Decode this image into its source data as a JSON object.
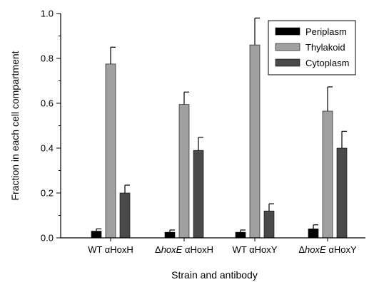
{
  "chart_data": {
    "type": "bar",
    "xlabel": "Strain and antibody",
    "ylabel": "Fraction in each cell compartment",
    "ylim": [
      0,
      1.0
    ],
    "yticks": [
      "0.0",
      "0.2",
      "0.4",
      "0.6",
      "0.8",
      "1.0"
    ],
    "grid": false,
    "legend_position": "top-right",
    "categories": [
      {
        "prefix": "WT ",
        "italic": "",
        "suffix": "",
        "greek": "α",
        "antibody": "HoxH"
      },
      {
        "prefix": "Δ",
        "italic": "hoxE",
        "suffix": " ",
        "greek": "α",
        "antibody": "HoxH"
      },
      {
        "prefix": "WT ",
        "italic": "",
        "suffix": "",
        "greek": "α",
        "antibody": "HoxY"
      },
      {
        "prefix": "Δ",
        "italic": "hoxE",
        "suffix": " ",
        "greek": "α",
        "antibody": "HoxY"
      }
    ],
    "series": [
      {
        "name": "Periplasm",
        "color": "#000000",
        "values": [
          0.03,
          0.025,
          0.025,
          0.04
        ],
        "errors": [
          0.01,
          0.01,
          0.01,
          0.018
        ]
      },
      {
        "name": "Thylakoid",
        "color": "#a0a0a0",
        "values": [
          0.775,
          0.595,
          0.86,
          0.565
        ],
        "errors": [
          0.075,
          0.055,
          0.12,
          0.108
        ]
      },
      {
        "name": "Cytoplasm",
        "color": "#4a4a4a",
        "values": [
          0.2,
          0.39,
          0.12,
          0.4
        ],
        "errors": [
          0.035,
          0.058,
          0.032,
          0.075
        ]
      }
    ]
  }
}
